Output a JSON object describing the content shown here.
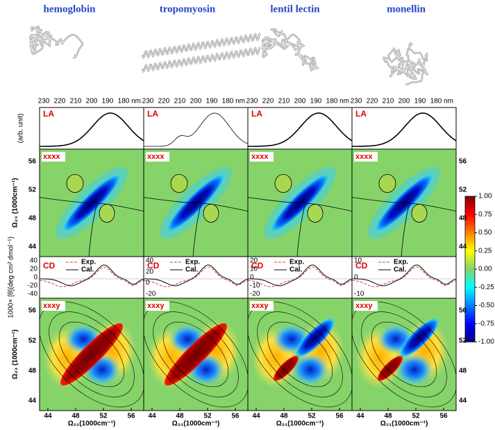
{
  "proteins": [
    "hemoglobin",
    "tropomyosin",
    "lentil lectin",
    "monellin"
  ],
  "wavelength_ticks": [
    "230",
    "220",
    "210",
    "200",
    "190",
    "180"
  ],
  "wavelength_unit": "nm",
  "panel_labels": {
    "la": "LA",
    "xxxx": "xxxx",
    "cd": "CD",
    "xxxy": "xxxy"
  },
  "axis_labels": {
    "la": "(arb. unit)",
    "omega23": "Ω₂₃ (1000cm⁻¹)",
    "cd": "1000× [θ](deg cm² dmol⁻¹)",
    "omega21": "Ω₂₁(1000cm⁻¹)"
  },
  "omega23_ticks": [
    "56",
    "52",
    "48",
    "44"
  ],
  "omega21_ticks": [
    "44",
    "48",
    "52",
    "56"
  ],
  "cd_ticks": [
    [
      "40",
      "20",
      "0",
      "-20",
      "-40"
    ],
    [
      "40",
      "20",
      "0",
      "-20"
    ],
    [
      "20",
      "10",
      "0",
      "-10",
      "-20"
    ],
    [
      "10",
      "0",
      "-10"
    ]
  ],
  "legend": [
    "Exp.",
    "Cal."
  ],
  "colorbar_ticks": [
    "1.00",
    "0.75",
    "0.50",
    "0.25",
    "0.00",
    "-0.25",
    "-0.50",
    "-0.75",
    "-1.00"
  ]
}
